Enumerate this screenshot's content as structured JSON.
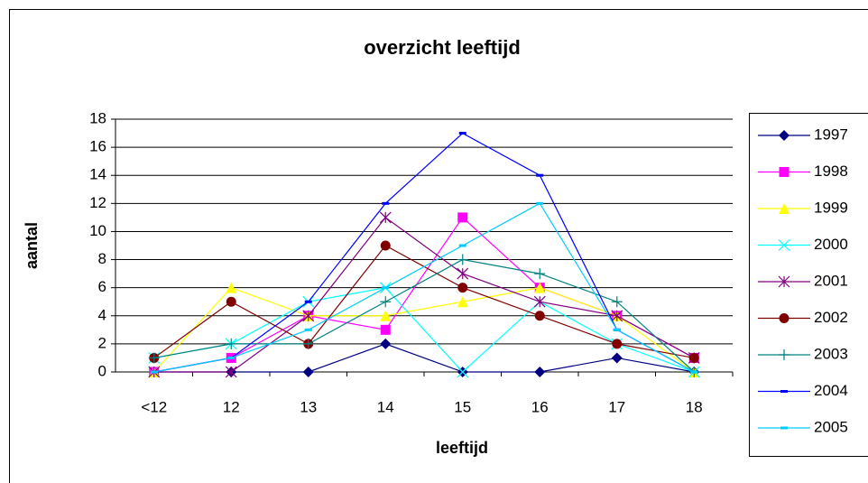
{
  "chart_data": {
    "type": "line",
    "title": "overzicht leeftijd",
    "x_label": "leeftijd",
    "y_label": "aantal",
    "categories": [
      "<12",
      "12",
      "13",
      "14",
      "15",
      "16",
      "17",
      "18"
    ],
    "ylim": [
      0,
      18
    ],
    "yticks": [
      0,
      2,
      4,
      6,
      8,
      10,
      12,
      14,
      16,
      18
    ],
    "grid": true,
    "legend": "right",
    "series": [
      {
        "name": "1997",
        "color": "#000080",
        "marker": "diamond",
        "values": [
          0,
          0,
          0,
          2,
          0,
          0,
          1,
          0
        ]
      },
      {
        "name": "1998",
        "color": "#ff00ff",
        "marker": "square",
        "values": [
          0,
          1,
          4,
          3,
          11,
          6,
          4,
          1
        ]
      },
      {
        "name": "1999",
        "color": "#ffff00",
        "marker": "triangle",
        "values": [
          0,
          6,
          4,
          4,
          5,
          6,
          4,
          0
        ]
      },
      {
        "name": "2000",
        "color": "#00ffff",
        "marker": "x",
        "values": [
          1,
          2,
          5,
          6,
          0,
          5,
          2,
          0
        ]
      },
      {
        "name": "2001",
        "color": "#800080",
        "marker": "star",
        "values": [
          0,
          0,
          4,
          11,
          7,
          5,
          4,
          1
        ]
      },
      {
        "name": "2002",
        "color": "#800000",
        "marker": "circle",
        "values": [
          1,
          5,
          2,
          9,
          6,
          4,
          2,
          1
        ]
      },
      {
        "name": "2003",
        "color": "#008080",
        "marker": "plus",
        "values": [
          1,
          2,
          2,
          5,
          8,
          7,
          5,
          0
        ]
      },
      {
        "name": "2004",
        "color": "#0000ff",
        "marker": "dash",
        "values": [
          0,
          1,
          5,
          12,
          17,
          14,
          3,
          0
        ]
      },
      {
        "name": "2005",
        "color": "#00ccff",
        "marker": "dash",
        "values": [
          0,
          1,
          3,
          6,
          9,
          12,
          3,
          0
        ]
      }
    ]
  }
}
